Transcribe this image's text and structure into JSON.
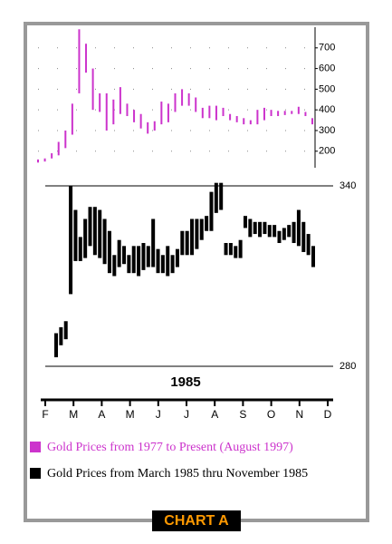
{
  "chart_data": [
    {
      "type": "range_bar",
      "ylim": [
        120,
        800
      ],
      "yticks": [
        200,
        300,
        400,
        500,
        600,
        700
      ],
      "grid": true,
      "series": [
        {
          "name": "Gold Prices from 1977 to Present (August 1997)",
          "color": "#cc33cc",
          "values": [
            [
              160,
              145
            ],
            [
              165,
              150
            ],
            [
              190,
              165
            ],
            [
              245,
              180
            ],
            [
              300,
              215
            ],
            [
              430,
              280
            ],
            [
              790,
              480
            ],
            [
              720,
              580
            ],
            [
              600,
              400
            ],
            [
              480,
              390
            ],
            [
              480,
              300
            ],
            [
              450,
              330
            ],
            [
              510,
              380
            ],
            [
              430,
              370
            ],
            [
              400,
              340
            ],
            [
              380,
              310
            ],
            [
              340,
              285
            ],
            [
              345,
              300
            ],
            [
              440,
              330
            ],
            [
              430,
              340
            ],
            [
              480,
              390
            ],
            [
              500,
              420
            ],
            [
              480,
              420
            ],
            [
              460,
              390
            ],
            [
              410,
              360
            ],
            [
              420,
              360
            ],
            [
              420,
              350
            ],
            [
              410,
              370
            ],
            [
              380,
              350
            ],
            [
              370,
              340
            ],
            [
              360,
              330
            ],
            [
              350,
              330
            ],
            [
              400,
              330
            ],
            [
              410,
              350
            ],
            [
              400,
              370
            ],
            [
              395,
              370
            ],
            [
              395,
              375
            ],
            [
              395,
              380
            ],
            [
              415,
              380
            ],
            [
              390,
              370
            ],
            [
              360,
              330
            ]
          ]
        }
      ]
    },
    {
      "type": "range_bar",
      "title": "1985",
      "ylim": [
        280,
        340
      ],
      "yticks": [
        280,
        340
      ],
      "categories": [
        "F",
        "M",
        "A",
        "M",
        "J",
        "J",
        "A",
        "S",
        "O",
        "N",
        "D"
      ],
      "series": [
        {
          "name": "Gold Prices from March 1985 thru November 1985",
          "color": "#000000",
          "values": [
            [
              291,
              283
            ],
            [
              293,
              287
            ],
            [
              295,
              289
            ],
            [
              340,
              304
            ],
            [
              332,
              315
            ],
            [
              323,
              315
            ],
            [
              329,
              316
            ],
            [
              333,
              320
            ],
            [
              333,
              317
            ],
            [
              332,
              316
            ],
            [
              329,
              314
            ],
            [
              325,
              311
            ],
            [
              317,
              310
            ],
            [
              322,
              313
            ],
            [
              320,
              314
            ],
            [
              317,
              311
            ],
            [
              320,
              311
            ],
            [
              320,
              310
            ],
            [
              321,
              312
            ],
            [
              320,
              313
            ],
            [
              329,
              313
            ],
            [
              319,
              311
            ],
            [
              317,
              311
            ],
            [
              320,
              310
            ],
            [
              317,
              311
            ],
            [
              319,
              313
            ],
            [
              325,
              317
            ],
            [
              325,
              317
            ],
            [
              329,
              317
            ],
            [
              329,
              319
            ],
            [
              329,
              322
            ],
            [
              330,
              325
            ],
            [
              338,
              325
            ],
            [
              341,
              331
            ],
            [
              341,
              332
            ],
            [
              321,
              317
            ],
            [
              321,
              317
            ],
            [
              320,
              316
            ],
            [
              322,
              316
            ],
            [
              330,
              326
            ],
            [
              329,
              323
            ],
            [
              328,
              324
            ],
            [
              328,
              323
            ],
            [
              328,
              324
            ],
            [
              327,
              323
            ],
            [
              327,
              323
            ],
            [
              325,
              321
            ],
            [
              326,
              322
            ],
            [
              327,
              323
            ],
            [
              328,
              321
            ],
            [
              332,
              320
            ],
            [
              328,
              318
            ],
            [
              324,
              317
            ],
            [
              320,
              313
            ]
          ]
        }
      ]
    }
  ],
  "footer_label": "CHART A"
}
